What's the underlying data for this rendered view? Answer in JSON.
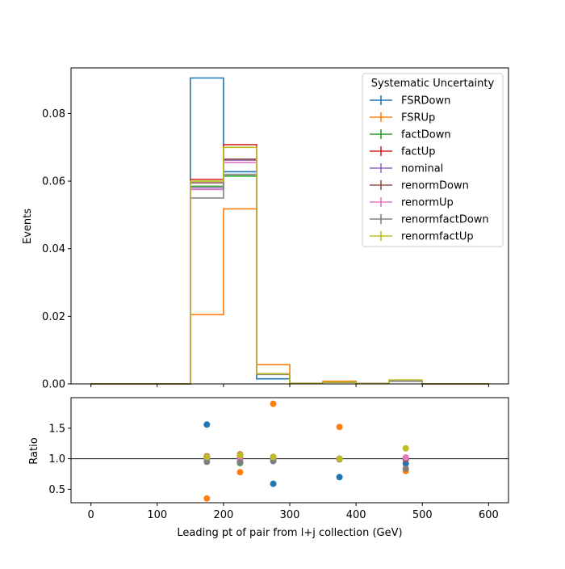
{
  "chart_data": [
    {
      "type": "step",
      "ylabel": "Events",
      "xlim": [
        -30,
        630
      ],
      "ylim": [
        0,
        0.0935
      ],
      "xticks": [
        0,
        100,
        200,
        300,
        400,
        500,
        600
      ],
      "yticks": [
        0.0,
        0.02,
        0.04,
        0.06,
        0.08
      ],
      "ytick_labels": [
        "0.00",
        "0.02",
        "0.04",
        "0.06",
        "0.08"
      ],
      "bin_edges": [
        0,
        50,
        100,
        150,
        200,
        250,
        300,
        350,
        400,
        450,
        500,
        550,
        600
      ],
      "legend": {
        "title": "Systematic Uncertainty",
        "location": "top-right"
      },
      "series": [
        {
          "name": "FSRDown",
          "color": "#1f77b4",
          "values": [
            0,
            0,
            0,
            0.0905,
            0.0628,
            0.0015,
            0.0001,
            0.0005,
            0.0001,
            0.0009,
            0,
            0
          ]
        },
        {
          "name": "FSRUp",
          "color": "#ff7f0e",
          "values": [
            0,
            0,
            0,
            0.0205,
            0.0518,
            0.0057,
            0.0002,
            0.0008,
            0.0001,
            0.0008,
            0,
            0
          ]
        },
        {
          "name": "factDown",
          "color": "#2ca02c",
          "values": [
            0,
            0,
            0,
            0.0585,
            0.0615,
            0.0029,
            0.0001,
            0.0005,
            0.0001,
            0.001,
            0,
            0
          ]
        },
        {
          "name": "factUp",
          "color": "#d62728",
          "values": [
            0,
            0,
            0,
            0.0605,
            0.0708,
            0.003,
            0.0001,
            0.0005,
            0.0001,
            0.001,
            0,
            0
          ]
        },
        {
          "name": "nominal",
          "color": "#9467bd",
          "values": [
            0,
            0,
            0,
            0.058,
            0.0662,
            0.0029,
            0.0001,
            0.0005,
            0.0001,
            0.001,
            0,
            0
          ]
        },
        {
          "name": "renormDown",
          "color": "#8c564b",
          "values": [
            0,
            0,
            0,
            0.0595,
            0.0665,
            0.0029,
            0.0001,
            0.0005,
            0.0001,
            0.001,
            0,
            0
          ]
        },
        {
          "name": "renormUp",
          "color": "#e377c2",
          "values": [
            0,
            0,
            0,
            0.0575,
            0.0655,
            0.0029,
            0.0001,
            0.0005,
            0.0001,
            0.001,
            0,
            0
          ]
        },
        {
          "name": "renormfactDown",
          "color": "#7f7f7f",
          "values": [
            0,
            0,
            0,
            0.055,
            0.062,
            0.0028,
            0.0001,
            0.0005,
            0.0001,
            0.0008,
            0,
            0
          ]
        },
        {
          "name": "renormfactUp",
          "color": "#bcbd22",
          "values": [
            0,
            0,
            0,
            0.06,
            0.07,
            0.003,
            0.0001,
            0.0005,
            0.0001,
            0.0012,
            0,
            0
          ]
        }
      ]
    },
    {
      "type": "scatter",
      "xlabel": "Leading pt of pair from l+j collection (GeV)",
      "ylabel": "Ratio",
      "xlim": [
        -30,
        630
      ],
      "ylim": [
        0.28,
        2.0
      ],
      "xticks": [
        0,
        100,
        200,
        300,
        400,
        500,
        600
      ],
      "yticks": [
        0.5,
        1.0,
        1.5
      ],
      "ytick_labels": [
        "0.5",
        "1.0",
        "1.5"
      ],
      "reference_line": 1.0,
      "x": [
        175,
        225,
        275,
        375,
        475
      ],
      "series": [
        {
          "name": "FSRDown",
          "color": "#1f77b4",
          "values": [
            1.56,
            0.95,
            0.59,
            0.7,
            0.92
          ]
        },
        {
          "name": "FSRUp",
          "color": "#ff7f0e",
          "values": [
            0.35,
            0.78,
            1.9,
            1.52,
            0.8
          ]
        },
        {
          "name": "factDown",
          "color": "#2ca02c",
          "values": [
            1.01,
            0.93,
            1.0,
            1.0,
            1.0
          ]
        },
        {
          "name": "factUp",
          "color": "#d62728",
          "values": [
            1.04,
            1.07,
            1.03,
            1.0,
            1.0
          ]
        },
        {
          "name": "nominal",
          "color": "#9467bd",
          "values": [
            1.0,
            1.0,
            1.0,
            1.0,
            1.0
          ]
        },
        {
          "name": "renormDown",
          "color": "#8c564b",
          "values": [
            1.03,
            1.01,
            1.0,
            1.0,
            0.99
          ]
        },
        {
          "name": "renormUp",
          "color": "#e377c2",
          "values": [
            0.99,
            0.99,
            1.0,
            1.0,
            1.02
          ]
        },
        {
          "name": "renormfactDown",
          "color": "#7f7f7f",
          "values": [
            0.95,
            0.94,
            0.96,
            0.99,
            0.84
          ]
        },
        {
          "name": "renormfactUp",
          "color": "#bcbd22",
          "values": [
            1.03,
            1.06,
            1.03,
            1.0,
            1.17
          ]
        }
      ]
    }
  ]
}
